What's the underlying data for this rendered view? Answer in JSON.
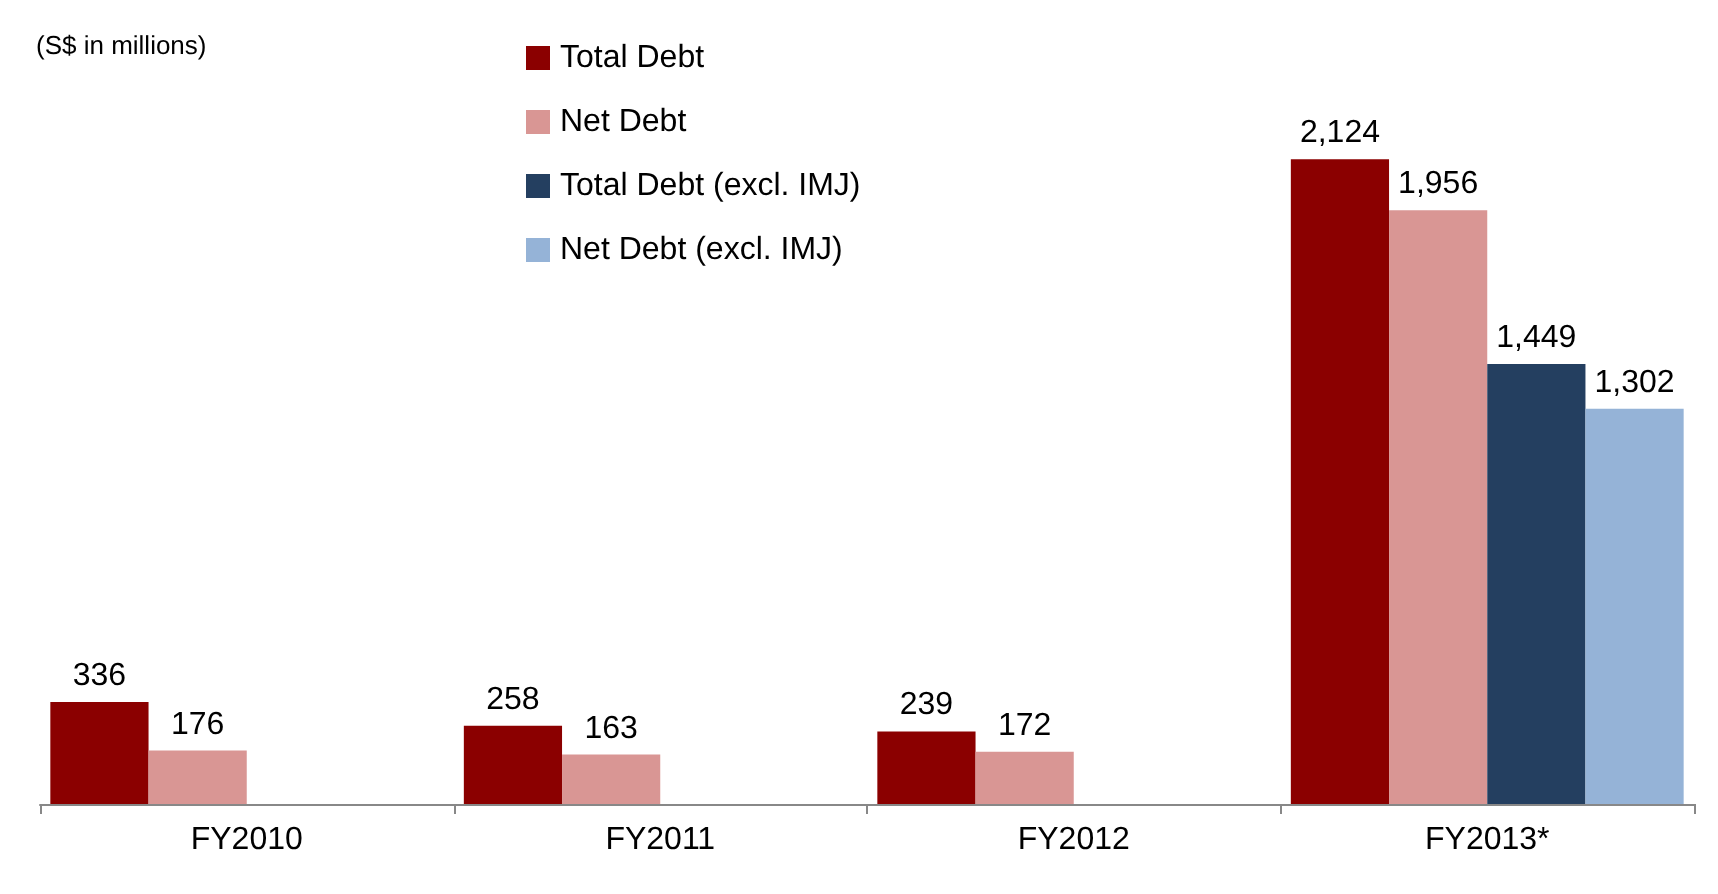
{
  "chart_data": {
    "type": "bar",
    "categories": [
      "FY2010",
      "FY2011",
      "FY2012",
      "FY2013*"
    ],
    "series": [
      {
        "name": "Total Debt",
        "color": "#8b0000",
        "values": [
          336,
          258,
          239,
          2124
        ],
        "value_labels": [
          "336",
          "258",
          "239",
          "2,124"
        ]
      },
      {
        "name": "Net Debt",
        "color": "#d99694",
        "values": [
          176,
          163,
          172,
          1956
        ],
        "value_labels": [
          "176",
          "163",
          "172",
          "1,956"
        ]
      },
      {
        "name": "Total Debt (excl. IMJ)",
        "color": "#243f60",
        "values": [
          null,
          null,
          null,
          1449
        ],
        "value_labels": [
          null,
          null,
          null,
          "1,449"
        ]
      },
      {
        "name": "Net Debt (excl. IMJ)",
        "color": "#95b3d7",
        "values": [
          null,
          null,
          null,
          1302
        ],
        "value_labels": [
          null,
          null,
          null,
          "1,302"
        ]
      }
    ],
    "legend": "top",
    "annotations": [
      "(S$ in millions)"
    ]
  }
}
